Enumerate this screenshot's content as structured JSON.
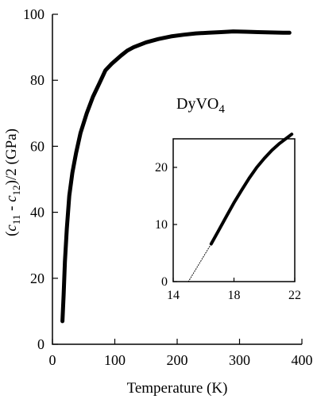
{
  "chart_data": [
    {
      "type": "line",
      "role": "main",
      "xlabel": "Temperature (K)",
      "ylabel_parts": [
        "(",
        "c",
        "11",
        " - ",
        "c",
        "12",
        ")/2 (GPa)"
      ],
      "annotation": {
        "base": "DyVO",
        "sub": "4"
      },
      "xlim": [
        0,
        400
      ],
      "ylim": [
        0,
        100
      ],
      "xticks": [
        0,
        100,
        200,
        300,
        400
      ],
      "yticks": [
        0,
        20,
        40,
        60,
        80,
        100
      ],
      "series": [
        {
          "x": [
            16,
            18,
            20,
            23,
            27,
            32,
            38,
            45,
            55,
            65,
            75,
            85,
            95,
            110,
            120,
            130,
            150,
            170,
            190,
            210,
            230,
            250,
            270,
            290,
            310,
            330,
            350,
            370,
            380
          ],
          "y": [
            7,
            15,
            25,
            35,
            45,
            52,
            58,
            64,
            70,
            75,
            79,
            83,
            85,
            87.5,
            89,
            90,
            91.5,
            92.5,
            93.3,
            93.8,
            94.2,
            94.4,
            94.6,
            94.8,
            94.7,
            94.6,
            94.5,
            94.4,
            94.4
          ],
          "color": "#000000"
        }
      ]
    },
    {
      "type": "line",
      "role": "inset",
      "xlim": [
        14,
        22
      ],
      "ylim": [
        0,
        25
      ],
      "xticks": [
        14,
        18,
        22
      ],
      "yticks": [
        0,
        10,
        20
      ],
      "series": [
        {
          "style": "dotted",
          "x": [
            15.0,
            16.5
          ],
          "y": [
            0,
            6.6
          ],
          "color": "#000000"
        },
        {
          "style": "solid",
          "x": [
            16.5,
            17.0,
            17.5,
            18.0,
            18.5,
            19.0,
            19.5,
            20.0,
            20.5,
            21.0,
            21.5,
            21.8
          ],
          "y": [
            6.6,
            9.0,
            11.4,
            13.8,
            16.0,
            18.1,
            20.0,
            21.6,
            23.0,
            24.2,
            25.2,
            25.8
          ],
          "color": "#000000"
        }
      ]
    }
  ]
}
